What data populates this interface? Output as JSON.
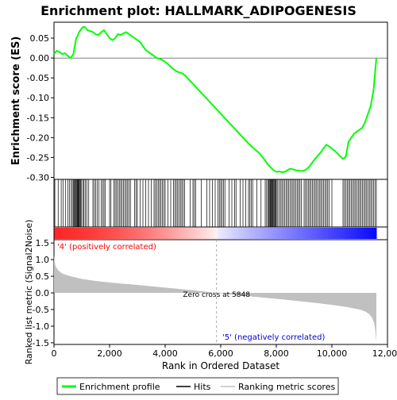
{
  "chart_data": {
    "type": "line",
    "title": "Enrichment plot: HALLMARK_ADIPOGENESIS",
    "es_panel": {
      "ylabel": "Enrichment score (ES)",
      "ylim": [
        -0.305,
        0.09
      ],
      "yticks": [
        0.05,
        0.0,
        -0.05,
        -0.1,
        -0.15,
        -0.2,
        -0.25,
        -0.3
      ],
      "ytick_labels": [
        "0.05",
        "0.00",
        "-0.05",
        "-0.10",
        "-0.15",
        "-0.20",
        "-0.25",
        "-0.30"
      ],
      "series": [
        {
          "name": "Enrichment profile",
          "color": "#00ff00",
          "x": [
            0,
            100,
            200,
            300,
            400,
            500,
            600,
            700,
            750,
            800,
            850,
            900,
            950,
            1000,
            1050,
            1100,
            1150,
            1200,
            1300,
            1400,
            1500,
            1600,
            1700,
            1800,
            1900,
            2000,
            2100,
            2200,
            2300,
            2400,
            2500,
            2600,
            2700,
            2800,
            2900,
            3000,
            3100,
            3200,
            3300,
            3400,
            3500,
            3600,
            3700,
            3800,
            3900,
            4000,
            4100,
            4200,
            4300,
            4400,
            4500,
            4600,
            4700,
            4800,
            5000,
            5200,
            5400,
            5600,
            5800,
            6000,
            6200,
            6400,
            6600,
            6800,
            7000,
            7200,
            7400,
            7600,
            7700,
            7800,
            7900,
            8000,
            8100,
            8200,
            8300,
            8400,
            8500,
            8600,
            8700,
            8800,
            8900,
            9000,
            9100,
            9200,
            9300,
            9400,
            9500,
            9600,
            9700,
            9800,
            9900,
            10000,
            10100,
            10200,
            10300,
            10400,
            10500,
            10600,
            10700,
            10800,
            10900,
            11000,
            11100,
            11200,
            11300,
            11400,
            11500,
            11550,
            11600
          ],
          "y": [
            0.01,
            0.018,
            0.015,
            0.01,
            0.012,
            0.005,
            0.0,
            0.01,
            0.03,
            0.05,
            0.055,
            0.065,
            0.07,
            0.075,
            0.078,
            0.078,
            0.075,
            0.07,
            0.068,
            0.065,
            0.06,
            0.058,
            0.065,
            0.07,
            0.06,
            0.05,
            0.045,
            0.05,
            0.06,
            0.058,
            0.062,
            0.065,
            0.06,
            0.055,
            0.05,
            0.045,
            0.04,
            0.03,
            0.02,
            0.015,
            0.01,
            0.005,
            0.0,
            -0.002,
            -0.005,
            -0.01,
            -0.015,
            -0.022,
            -0.028,
            -0.033,
            -0.036,
            -0.038,
            -0.043,
            -0.05,
            -0.065,
            -0.08,
            -0.095,
            -0.11,
            -0.125,
            -0.14,
            -0.155,
            -0.17,
            -0.185,
            -0.2,
            -0.215,
            -0.228,
            -0.24,
            -0.258,
            -0.268,
            -0.275,
            -0.282,
            -0.286,
            -0.285,
            -0.287,
            -0.286,
            -0.282,
            -0.278,
            -0.28,
            -0.282,
            -0.283,
            -0.284,
            -0.283,
            -0.279,
            -0.272,
            -0.262,
            -0.253,
            -0.245,
            -0.237,
            -0.227,
            -0.218,
            -0.222,
            -0.228,
            -0.233,
            -0.24,
            -0.247,
            -0.254,
            -0.248,
            -0.21,
            -0.2,
            -0.19,
            -0.185,
            -0.18,
            -0.175,
            -0.16,
            -0.14,
            -0.12,
            -0.08,
            -0.04,
            0.0
          ]
        }
      ]
    },
    "hits_panel": {
      "name": "Hits",
      "color": "#000000",
      "positions": [
        30,
        150,
        260,
        330,
        420,
        500,
        560,
        620,
        660,
        700,
        730,
        760,
        790,
        810,
        840,
        860,
        880,
        900,
        930,
        960,
        990,
        1040,
        1080,
        1130,
        1180,
        1250,
        1400,
        1450,
        1500,
        1560,
        1620,
        1700,
        1750,
        1800,
        1850,
        2000,
        2050,
        2150,
        2200,
        2250,
        2300,
        2350,
        2400,
        2450,
        2500,
        2550,
        2600,
        2650,
        2700,
        2750,
        2900,
        2950,
        3000,
        3100,
        3200,
        3300,
        3400,
        3500,
        3600,
        3650,
        3700,
        3750,
        3800,
        3850,
        3900,
        3950,
        4000,
        4100,
        4200,
        4300,
        4350,
        4400,
        4450,
        4500,
        4550,
        4600,
        4650,
        4700,
        4900,
        5000,
        5050,
        5100,
        5300,
        5500,
        5600,
        5700,
        5800,
        5900,
        5950,
        6000,
        6050,
        6100,
        6150,
        6300,
        6400,
        6500,
        6550,
        6700,
        6800,
        6900,
        7000,
        7050,
        7100,
        7150,
        7300,
        7450,
        7600,
        7650,
        7700,
        7720,
        7750,
        7780,
        7800,
        7830,
        7850,
        7870,
        7900,
        7930,
        7950,
        7980,
        8000,
        8050,
        8100,
        8150,
        8200,
        8250,
        8300,
        8350,
        8400,
        8450,
        8500,
        8550,
        8600,
        8650,
        8700,
        8750,
        8800,
        8850,
        8900,
        9000,
        9050,
        9100,
        9150,
        9200,
        9250,
        9300,
        9350,
        9400,
        9450,
        9500,
        9550,
        9600,
        9650,
        9700,
        9750,
        9800,
        9850,
        9900,
        10000,
        10400,
        10450,
        10500,
        10550,
        10600,
        10650,
        10700,
        10750,
        10800,
        10850,
        10900,
        10950,
        11000,
        11050,
        11100,
        11150,
        11200,
        11250,
        11300,
        11350,
        11400,
        11450,
        11500,
        11550,
        11600
      ]
    },
    "rank_panel": {
      "ylabel": "Ranked list metric (Signal2Noise)",
      "xlabel": "Rank in Ordered Dataset",
      "ylim": [
        -1.55,
        1.6
      ],
      "yticks": [
        1.5,
        1.0,
        0.5,
        0.0,
        -0.5,
        -1.0,
        -1.5
      ],
      "ytick_labels": [
        "1.5",
        "1.0",
        "0.5",
        "0.0",
        "-0.5",
        "-1.0",
        "-1.5"
      ],
      "xlim": [
        0,
        12000
      ],
      "xticks": [
        0,
        2000,
        4000,
        6000,
        8000,
        10000,
        12000
      ],
      "xtick_labels": [
        "0",
        "2,000",
        "4,000",
        "6,000",
        "8,000",
        "10,000",
        "12,000"
      ],
      "metric_x": [
        0,
        20,
        60,
        150,
        300,
        600,
        1000,
        1500,
        2000,
        3000,
        4000,
        5000,
        5848,
        6500,
        7500,
        8500,
        9500,
        10000,
        10500,
        11000,
        11200,
        11350,
        11450,
        11520,
        11560,
        11600
      ],
      "metric_y": [
        1.15,
        0.95,
        0.8,
        0.68,
        0.58,
        0.5,
        0.42,
        0.36,
        0.31,
        0.24,
        0.16,
        0.08,
        0.0,
        -0.06,
        -0.14,
        -0.22,
        -0.31,
        -0.36,
        -0.42,
        -0.5,
        -0.56,
        -0.64,
        -0.75,
        -0.9,
        -1.1,
        -1.45
      ],
      "color": "#c0c0c0",
      "zero_cross_label": "Zero cross at 5848",
      "zero_cross": 5848,
      "positive_label": "'4' (positively correlated)",
      "negative_label": "'5' (negatively correlated)",
      "positive_color": "#ff0000",
      "negative_color": "#0000cc"
    },
    "dataset_size": 11600,
    "legend": [
      {
        "label": "Enrichment profile",
        "color": "#00ff00"
      },
      {
        "label": "Hits",
        "color": "#000000"
      },
      {
        "label": "Ranking metric scores",
        "color": "#c0c0c0"
      }
    ]
  }
}
